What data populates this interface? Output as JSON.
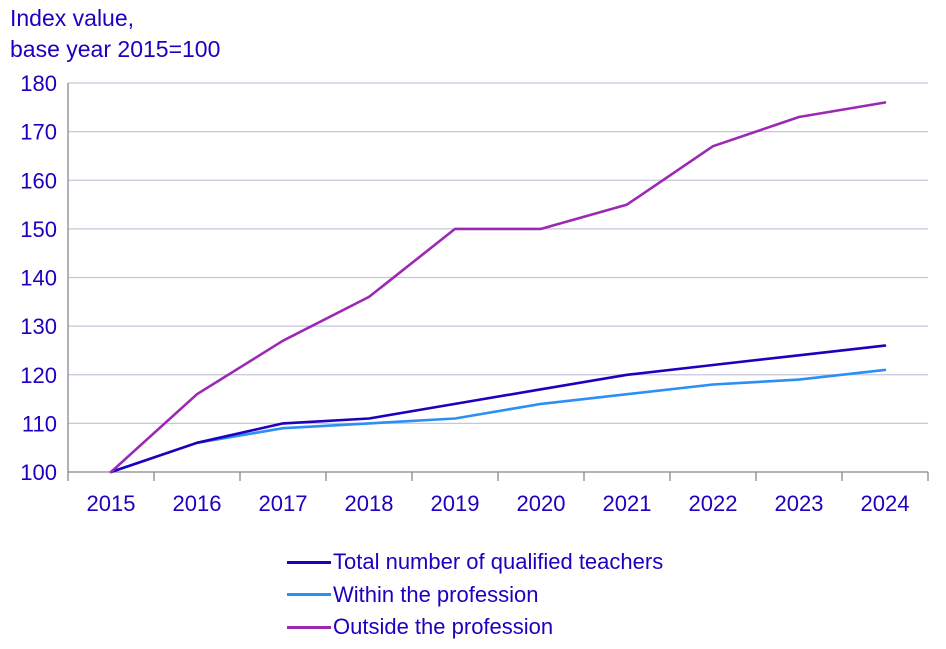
{
  "chart_data": {
    "type": "line",
    "title": "",
    "ylabel": [
      "Index value,",
      "base year 2015=100"
    ],
    "xlabel": "",
    "ylim": [
      100,
      180
    ],
    "yticks": [
      100,
      110,
      120,
      130,
      140,
      150,
      160,
      170,
      180
    ],
    "categories": [
      "2015",
      "2016",
      "2017",
      "2018",
      "2019",
      "2020",
      "2021",
      "2022",
      "2023",
      "2024"
    ],
    "series": [
      {
        "name": "Total number of qualified teachers",
        "color": "#1e00be",
        "values": [
          100,
          106,
          110,
          111,
          114,
          117,
          120,
          122,
          124,
          126
        ]
      },
      {
        "name": "Within the profession",
        "color": "#2c8ff5",
        "values": [
          100,
          106,
          109,
          110,
          111,
          114,
          116,
          118,
          119,
          121
        ]
      },
      {
        "name": "Outside the profession",
        "color": "#9b29b3",
        "values": [
          100,
          116,
          127,
          136,
          150,
          150,
          155,
          167,
          173,
          176
        ]
      }
    ],
    "grid": true,
    "legend": "bottom"
  }
}
